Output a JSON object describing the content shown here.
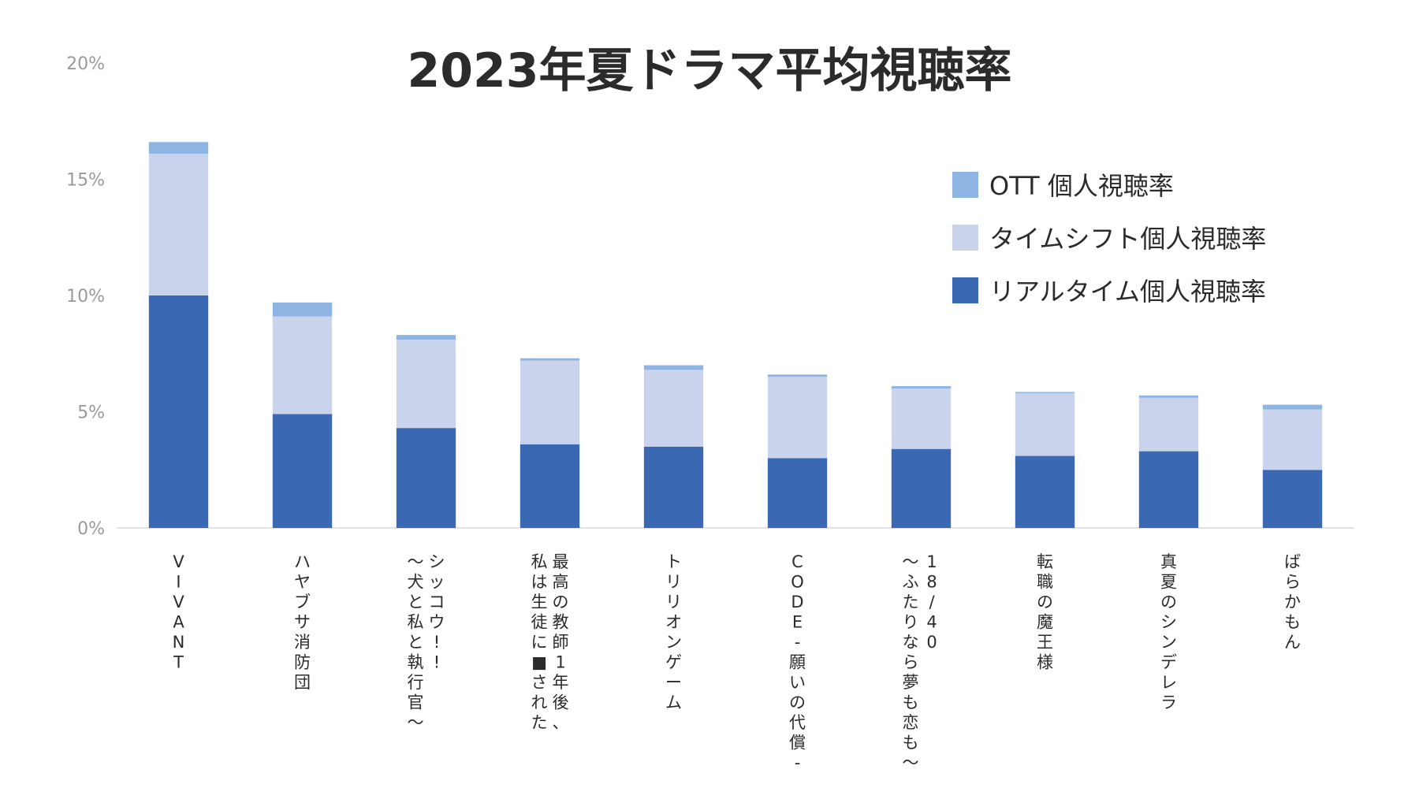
{
  "chart_data": {
    "type": "bar",
    "stacked": true,
    "title": "2023年夏ドラマ平均視聴率",
    "xlabel": "",
    "ylabel": "",
    "ylim": [
      0,
      20
    ],
    "yticks": [
      "0%",
      "5%",
      "10%",
      "15%",
      "20%"
    ],
    "legend_position": "top-right",
    "categories": [
      "VIVANT",
      "ハヤブサ消防団",
      "シッコウ!!〜犬と私と執行官〜",
      "最高の教師1年後、私は生徒に■された",
      "トリリオンゲーム",
      "CODE-願いの代償-",
      "18/40〜ふたりなら夢も恋も〜",
      "転職の魔王様",
      "真夏のシンデレラ",
      "ばらかもん"
    ],
    "category_columns": [
      [
        "V",
        "I",
        "V",
        "A",
        "N",
        "T"
      ],
      [
        "ハ",
        "ヤ",
        "ブ",
        "サ",
        "消",
        "防",
        "団"
      ],
      [
        "シ",
        "ッ",
        "コ",
        "ウ",
        "!",
        "!"
      ],
      [
        "〜",
        "犬",
        "と",
        "私",
        "と",
        "執",
        "行",
        "官",
        "〜"
      ],
      [
        "最",
        "高",
        "の",
        "教",
        "師",
        "1",
        "年",
        "後",
        "、"
      ],
      [
        "私",
        "は",
        "生",
        "徒",
        "に",
        "■",
        "さ",
        "れ",
        "た"
      ],
      [
        "ト",
        "リ",
        "リ",
        "オ",
        "ン",
        "ゲ",
        "ー",
        "ム"
      ],
      [
        "C",
        "O",
        "D",
        "E",
        "-",
        "願",
        "い",
        "の",
        "代",
        "償",
        "-"
      ],
      [
        "1",
        "8",
        "/",
        "4",
        "0"
      ],
      [
        "〜",
        "ふ",
        "た",
        "り",
        "な",
        "ら",
        "夢",
        "も",
        "恋",
        "も",
        "〜"
      ],
      [
        "転",
        "職",
        "の",
        "魔",
        "王",
        "様"
      ],
      [
        "真",
        "夏",
        "の",
        "シ",
        "ン",
        "デ",
        "レ",
        "ラ"
      ],
      [
        "ば",
        "ら",
        "か",
        "も",
        "ん"
      ]
    ],
    "series": [
      {
        "name": "リアルタイム個人視聴率",
        "color": "#3b68b2",
        "values": [
          10.0,
          4.9,
          4.3,
          3.6,
          3.5,
          3.0,
          3.4,
          3.1,
          3.3,
          2.5
        ]
      },
      {
        "name": "タイムシフト個人視聴率",
        "color": "#c9d4ec",
        "values": [
          6.1,
          4.2,
          3.8,
          3.6,
          3.3,
          3.5,
          2.6,
          2.7,
          2.3,
          2.6
        ]
      },
      {
        "name": "OTT 個人視聴率",
        "color": "#8db4e2",
        "values": [
          0.5,
          0.6,
          0.2,
          0.1,
          0.2,
          0.1,
          0.1,
          0.05,
          0.1,
          0.2
        ]
      }
    ],
    "legend": [
      "OTT 個人視聴率",
      "タイムシフト個人視聴率",
      "リアルタイム個人視聴率"
    ]
  }
}
